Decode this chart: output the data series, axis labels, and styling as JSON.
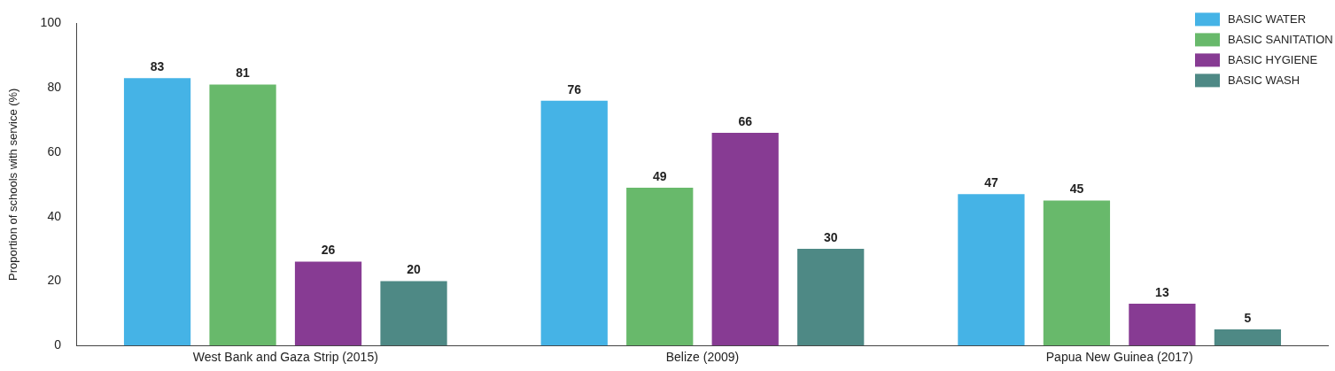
{
  "chart_data": {
    "type": "bar",
    "categories": [
      "West Bank and Gaza Strip (2015)",
      "Belize (2009)",
      "Papua New Guinea (2017)"
    ],
    "ylabel": "Proportion of schools with service (%)",
    "ylim": [
      0,
      100
    ],
    "yticks": [
      0,
      20,
      40,
      60,
      80,
      100
    ],
    "grid": false,
    "legend": "top right",
    "data_labels": true,
    "series": [
      {
        "name": "BASIC WATER",
        "color": "#45b3e6",
        "values": [
          83,
          76,
          47
        ]
      },
      {
        "name": "BASIC SANITATION",
        "color": "#68b96b",
        "values": [
          81,
          49,
          45
        ]
      },
      {
        "name": "BASIC HYGIENE",
        "color": "#873b93",
        "values": [
          26,
          66,
          13
        ]
      },
      {
        "name": "BASIC WASH",
        "color": "#4e8985",
        "values": [
          20,
          30,
          5
        ]
      }
    ]
  }
}
